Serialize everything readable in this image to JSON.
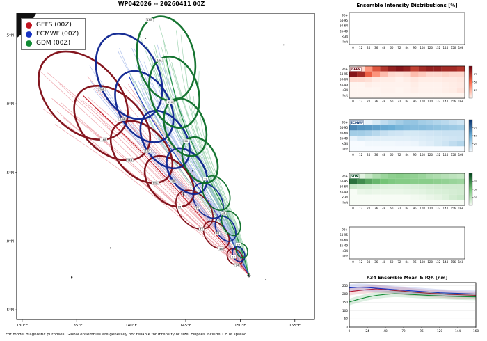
{
  "map": {
    "title": "WP042026 -- 20260411 00Z",
    "legend": [
      {
        "label": "GEFS (00Z)",
        "color": "#c01420"
      },
      {
        "label": "ECMWF (00Z)",
        "color": "#1632c2"
      },
      {
        "label": "GDM (00Z)",
        "color": "#118a34"
      }
    ],
    "footnote": "For model diagnostic purposes. Global ensembles are generally not reliable for intensity or size. Ellipses include 1 σ of spread.",
    "lon_range": [
      129.5,
      156.8
    ],
    "lat_range": [
      4.3,
      26.6
    ],
    "lon_ticks": [
      {
        "value": 130,
        "label": "130°E"
      },
      {
        "value": 135,
        "label": "135°E"
      },
      {
        "value": 140,
        "label": "140°E"
      },
      {
        "value": 145,
        "label": "145°E"
      },
      {
        "value": 150,
        "label": "150°E"
      },
      {
        "value": 155,
        "label": "155°E"
      }
    ],
    "lat_ticks": [
      {
        "value": 5,
        "label": "5°N"
      },
      {
        "value": 10,
        "label": "10°N"
      },
      {
        "value": 15,
        "label": "15°N"
      },
      {
        "value": 20,
        "label": "20°N"
      },
      {
        "value": 25,
        "label": "25°N"
      }
    ],
    "corner_land": [
      [
        129.5,
        26.6
      ],
      [
        131.3,
        26.6
      ],
      [
        130.7,
        25.8
      ],
      [
        130.0,
        25.1
      ],
      [
        129.5,
        24.8
      ]
    ],
    "islands": [
      {
        "lon": 134.55,
        "lat": 7.35,
        "rx": 1.1,
        "ry": 2.0
      },
      {
        "lon": 138.12,
        "lat": 9.5,
        "rx": 0.9,
        "ry": 1.1
      },
      {
        "lon": 144.8,
        "lat": 13.45,
        "rx": 1.2,
        "ry": 2.4
      },
      {
        "lon": 145.28,
        "lat": 14.15,
        "rx": 0.7,
        "ry": 0.9
      },
      {
        "lon": 145.62,
        "lat": 15.12,
        "rx": 0.7,
        "ry": 1.3
      },
      {
        "lon": 141.32,
        "lat": 24.78,
        "rx": 0.9,
        "ry": 0.9
      },
      {
        "lon": 153.98,
        "lat": 24.3,
        "rx": 0.8,
        "ry": 0.8
      },
      {
        "lon": 152.35,
        "lat": 7.2,
        "rx": 0.8,
        "ry": 0.8
      }
    ]
  },
  "intensity": {
    "title": "Ensemble Intensity Distributions [%]",
    "row_labels": [
      "96+",
      "64-95",
      "50-64",
      "35-49",
      "<34",
      "lost"
    ],
    "hour_ticks": [
      0,
      12,
      24,
      36,
      48,
      60,
      72,
      84,
      96,
      108,
      120,
      132,
      144,
      156,
      168
    ],
    "colorbar_ticks": [
      75,
      50,
      25
    ]
  },
  "chart_data": [
    {
      "id": "track_ensemble_map",
      "type": "scatter",
      "title": "WP042026 -- 20260411 00Z",
      "xlabel": "Longitude",
      "ylabel": "Latitude",
      "xlim": [
        129.5,
        156.8
      ],
      "ylim": [
        4.3,
        26.6
      ],
      "forecast_hours": [
        0,
        12,
        24,
        36,
        48,
        60,
        72,
        84,
        96,
        108,
        120,
        132,
        144,
        156,
        168
      ],
      "ellipse_hours": [
        24,
        48,
        72,
        96,
        120,
        144,
        168
      ],
      "ellipse_semi_axes_deg": {
        "along": [
          0.75,
          1.3,
          1.85,
          2.45,
          3.05,
          3.7,
          4.35
        ],
        "cross": [
          0.45,
          0.7,
          1.0,
          1.3,
          1.6,
          1.95,
          2.3
        ]
      },
      "models": [
        {
          "name": "GEFS",
          "color": "#c01420",
          "light": "#e0606e",
          "dark": "#7e0a14",
          "ellipse_scale": 1.1,
          "members": 26,
          "spread": [
            4.3,
            2.4
          ],
          "label_angle": 150,
          "mean_track": [
            [
              150.8,
              7.5
            ],
            [
              150.2,
              8.15
            ],
            [
              149.5,
              8.85
            ],
            [
              148.7,
              9.6
            ],
            [
              147.8,
              10.45
            ],
            [
              146.85,
              11.35
            ],
            [
              145.8,
              12.3
            ],
            [
              144.7,
              13.3
            ],
            [
              143.5,
              14.35
            ],
            [
              142.25,
              15.4
            ],
            [
              140.95,
              16.5
            ],
            [
              139.6,
              17.55
            ],
            [
              138.25,
              18.6
            ],
            [
              136.9,
              19.6
            ],
            [
              135.6,
              20.6
            ]
          ]
        },
        {
          "name": "ECMWF",
          "color": "#1632c2",
          "light": "#6e8fdd",
          "dark": "#0c2390",
          "ellipse_scale": 0.95,
          "members": 26,
          "spread": [
            3.9,
            2.3
          ],
          "label_angle": 90,
          "mean_track": [
            [
              150.8,
              7.5
            ],
            [
              150.35,
              8.25
            ],
            [
              149.85,
              9.05
            ],
            [
              149.3,
              9.95
            ],
            [
              148.65,
              10.9
            ],
            [
              147.9,
              11.9
            ],
            [
              147.05,
              12.95
            ],
            [
              146.1,
              14.0
            ],
            [
              145.1,
              15.1
            ],
            [
              144.1,
              16.2
            ],
            [
              143.1,
              17.4
            ],
            [
              142.1,
              18.6
            ],
            [
              141.2,
              19.8
            ],
            [
              140.45,
              20.9
            ],
            [
              139.8,
              22.0
            ]
          ]
        },
        {
          "name": "GDM",
          "color": "#118a34",
          "light": "#5fb87d",
          "dark": "#0b6e28",
          "ellipse_scale": 0.9,
          "members": 26,
          "spread": [
            3.4,
            2.6
          ],
          "label_angle": 15,
          "mean_track": [
            [
              150.8,
              7.5
            ],
            [
              150.5,
              8.4
            ],
            [
              150.15,
              9.3
            ],
            [
              149.7,
              10.3
            ],
            [
              149.15,
              11.3
            ],
            [
              148.5,
              12.4
            ],
            [
              147.8,
              13.5
            ],
            [
              147.05,
              14.7
            ],
            [
              146.3,
              15.9
            ],
            [
              145.6,
              17.1
            ],
            [
              144.95,
              18.3
            ],
            [
              144.4,
              19.6
            ],
            [
              143.95,
              20.85
            ],
            [
              143.55,
              22.1
            ],
            [
              143.2,
              23.3
            ]
          ]
        }
      ]
    },
    {
      "id": "intensity_gefs",
      "type": "heatmap",
      "model": "GEFS",
      "colormap": [
        "#fff5f0",
        "#fb6a4a",
        "#67000d"
      ],
      "rows": [
        "96+",
        "64-95",
        "50-64",
        "35-49",
        "<34",
        "lost"
      ],
      "hours": [
        0,
        12,
        24,
        36,
        48,
        60,
        72,
        84,
        96,
        108,
        120,
        132,
        144,
        156,
        168
      ],
      "values": [
        [
          0,
          10,
          35,
          60,
          75,
          85,
          90,
          85,
          70,
          80,
          85,
          85,
          80,
          80,
          75
        ],
        [
          90,
          80,
          55,
          35,
          20,
          10,
          8,
          10,
          20,
          15,
          10,
          10,
          12,
          10,
          10
        ],
        [
          10,
          10,
          8,
          4,
          3,
          3,
          1,
          3,
          5,
          3,
          3,
          3,
          4,
          4,
          5
        ],
        [
          0,
          0,
          2,
          1,
          1,
          1,
          1,
          1,
          3,
          1,
          1,
          1,
          2,
          3,
          4
        ],
        [
          0,
          0,
          0,
          0,
          1,
          1,
          0,
          1,
          2,
          1,
          1,
          1,
          2,
          3,
          6
        ],
        [
          0,
          0,
          0,
          0,
          0,
          0,
          0,
          0,
          0,
          0,
          0,
          0,
          0,
          0,
          0
        ]
      ]
    },
    {
      "id": "intensity_ecmwf",
      "type": "heatmap",
      "model": "ECMWF",
      "colormap": [
        "#f7fbff",
        "#6baed6",
        "#08306b"
      ],
      "rows": [
        "96+",
        "64-95",
        "50-64",
        "35-49",
        "<34",
        "lost"
      ],
      "hours": [
        0,
        12,
        24,
        36,
        48,
        60,
        72,
        84,
        96,
        108,
        120,
        132,
        144,
        156,
        168
      ],
      "values": [
        [
          0,
          0,
          5,
          12,
          20,
          25,
          30,
          35,
          35,
          30,
          28,
          25,
          22,
          18,
          15
        ],
        [
          65,
          60,
          58,
          55,
          52,
          50,
          45,
          42,
          40,
          40,
          38,
          36,
          34,
          32,
          30
        ],
        [
          30,
          30,
          27,
          23,
          18,
          15,
          14,
          12,
          12,
          13,
          14,
          15,
          16,
          16,
          16
        ],
        [
          5,
          10,
          8,
          8,
          8,
          8,
          8,
          8,
          9,
          10,
          11,
          12,
          13,
          14,
          15
        ],
        [
          0,
          0,
          2,
          2,
          2,
          2,
          3,
          3,
          4,
          7,
          9,
          12,
          15,
          20,
          24
        ],
        [
          0,
          0,
          0,
          0,
          0,
          0,
          0,
          0,
          0,
          0,
          0,
          0,
          0,
          0,
          0
        ]
      ]
    },
    {
      "id": "intensity_gdm",
      "type": "heatmap",
      "model": "GDM",
      "colormap": [
        "#f7fcf5",
        "#74c476",
        "#00441b"
      ],
      "rows": [
        "96+",
        "64-95",
        "50-64",
        "35-49",
        "<34",
        "lost"
      ],
      "hours": [
        0,
        12,
        24,
        36,
        48,
        60,
        72,
        84,
        96,
        108,
        120,
        132,
        144,
        156,
        168
      ],
      "values": [
        [
          0,
          8,
          18,
          28,
          35,
          40,
          42,
          40,
          38,
          35,
          30,
          28,
          25,
          22,
          20
        ],
        [
          82,
          72,
          62,
          55,
          50,
          46,
          44,
          44,
          42,
          42,
          42,
          40,
          38,
          36,
          34
        ],
        [
          18,
          15,
          14,
          12,
          10,
          9,
          9,
          10,
          11,
          12,
          13,
          14,
          15,
          15,
          15
        ],
        [
          0,
          5,
          6,
          5,
          5,
          5,
          5,
          6,
          7,
          8,
          10,
          11,
          12,
          13,
          14
        ],
        [
          0,
          0,
          0,
          0,
          0,
          0,
          0,
          0,
          2,
          3,
          5,
          7,
          10,
          14,
          17
        ],
        [
          0,
          0,
          0,
          0,
          0,
          0,
          0,
          0,
          0,
          0,
          0,
          0,
          0,
          0,
          0
        ]
      ]
    },
    {
      "id": "r34",
      "type": "line",
      "title": "R34 Ensemble Mean & IQR [nm]",
      "x": [
        0,
        12,
        24,
        36,
        48,
        60,
        72,
        84,
        96,
        108,
        120,
        132,
        144,
        156,
        168
      ],
      "xticks": [
        0,
        24,
        48,
        72,
        96,
        120,
        144,
        168
      ],
      "ylim": [
        0,
        270
      ],
      "yticks": [
        0,
        50,
        100,
        150,
        200,
        250
      ],
      "series": [
        {
          "name": "GEFS",
          "color": "#c01420",
          "mean": [
            215,
            222,
            228,
            232,
            228,
            222,
            218,
            212,
            208,
            204,
            202,
            198,
            196,
            194,
            192
          ],
          "q25": [
            192,
            199,
            205,
            209,
            205,
            199,
            195,
            189,
            185,
            181,
            179,
            175,
            173,
            171,
            168
          ],
          "q75": [
            238,
            245,
            251,
            255,
            251,
            245,
            241,
            235,
            231,
            227,
            225,
            221,
            219,
            217,
            216
          ]
        },
        {
          "name": "ECMWF",
          "color": "#1632c2",
          "mean": [
            238,
            242,
            240,
            236,
            232,
            228,
            224,
            220,
            216,
            212,
            208,
            206,
            204,
            202,
            200
          ],
          "q25": [
            216,
            220,
            218,
            214,
            210,
            206,
            202,
            198,
            194,
            190,
            186,
            184,
            182,
            180,
            178
          ],
          "q75": [
            260,
            264,
            262,
            258,
            254,
            250,
            246,
            242,
            238,
            234,
            230,
            228,
            226,
            224,
            222
          ]
        },
        {
          "name": "GDM",
          "color": "#118a34",
          "mean": [
            152,
            168,
            182,
            192,
            198,
            202,
            200,
            197,
            194,
            191,
            189,
            187,
            185,
            184,
            183
          ],
          "q25": [
            132,
            148,
            162,
            172,
            178,
            182,
            180,
            177,
            174,
            171,
            169,
            167,
            165,
            164,
            163
          ],
          "q75": [
            172,
            188,
            202,
            212,
            218,
            222,
            220,
            217,
            214,
            211,
            209,
            207,
            205,
            204,
            203
          ]
        }
      ]
    }
  ]
}
